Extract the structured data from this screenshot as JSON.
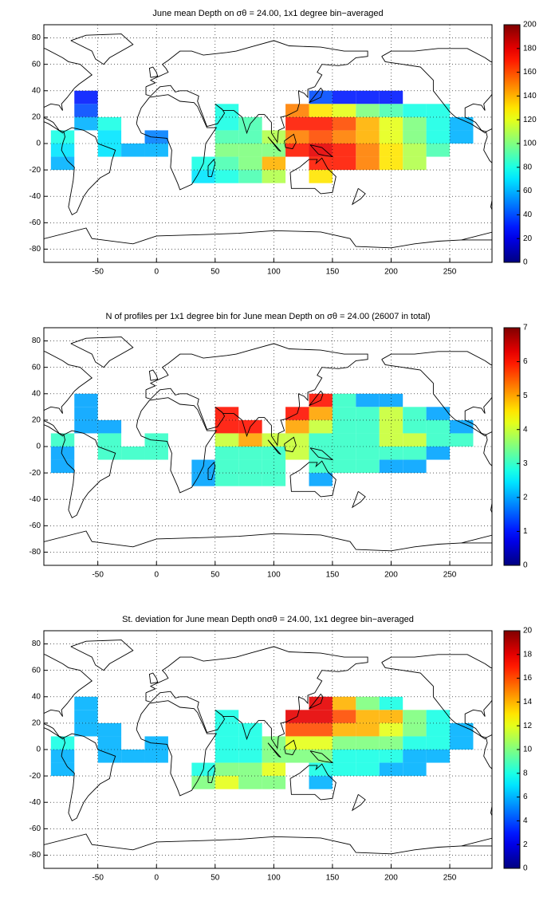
{
  "chart_data": [
    {
      "type": "heatmap",
      "title": "June mean Depth on σθ = 24.00, 1x1 degree bin−averaged",
      "xlim": [
        -96,
        286
      ],
      "ylim": [
        -90,
        90
      ],
      "xticks": [
        -50,
        0,
        50,
        100,
        150,
        200,
        250
      ],
      "yticks": [
        -80,
        -60,
        -40,
        -20,
        0,
        20,
        40,
        60,
        80
      ],
      "grid": true,
      "colormap": "jet",
      "colorbar_lim": [
        0,
        200
      ],
      "colorbar_ticks": [
        0,
        20,
        40,
        60,
        80,
        100,
        120,
        140,
        160,
        180,
        200
      ],
      "x": [
        -80,
        -60,
        -40,
        -20,
        0,
        20,
        40,
        60,
        80,
        100,
        120,
        140,
        160,
        180,
        200,
        220,
        240,
        260,
        280
      ],
      "y": [
        35,
        25,
        15,
        5,
        -5,
        -15,
        -25
      ],
      "values": [
        [
          null,
          30,
          null,
          null,
          null,
          null,
          null,
          null,
          null,
          null,
          null,
          40,
          30,
          30,
          30,
          null,
          null,
          null,
          null
        ],
        [
          null,
          40,
          null,
          null,
          null,
          null,
          null,
          80,
          null,
          null,
          150,
          130,
          120,
          100,
          90,
          80,
          80,
          null,
          null
        ],
        [
          null,
          60,
          80,
          null,
          null,
          null,
          null,
          80,
          90,
          null,
          170,
          170,
          160,
          140,
          120,
          100,
          80,
          60,
          null
        ],
        [
          80,
          null,
          70,
          null,
          50,
          null,
          null,
          90,
          90,
          110,
          150,
          160,
          150,
          140,
          120,
          100,
          80,
          60,
          null
        ],
        [
          70,
          null,
          70,
          60,
          60,
          null,
          null,
          100,
          100,
          100,
          170,
          180,
          170,
          150,
          130,
          110,
          90,
          null,
          null
        ],
        [
          60,
          null,
          null,
          null,
          null,
          null,
          80,
          90,
          100,
          140,
          null,
          170,
          170,
          150,
          130,
          110,
          null,
          null,
          null
        ],
        [
          null,
          null,
          null,
          null,
          null,
          null,
          70,
          80,
          90,
          110,
          null,
          130,
          null,
          null,
          null,
          null,
          null,
          null,
          null
        ]
      ]
    },
    {
      "type": "heatmap",
      "title": "N of profiles per 1x1 degree bin for June mean Depth on σθ = 24.00 (26007 in total)",
      "xlim": [
        -96,
        286
      ],
      "ylim": [
        -90,
        90
      ],
      "xticks": [
        -50,
        0,
        50,
        100,
        150,
        200,
        250
      ],
      "yticks": [
        -80,
        -60,
        -40,
        -20,
        0,
        20,
        40,
        60,
        80
      ],
      "grid": true,
      "colormap": "jet",
      "colorbar_lim": [
        0,
        7
      ],
      "colorbar_ticks": [
        0,
        1,
        2,
        3,
        4,
        5,
        6,
        7
      ],
      "x": [
        -80,
        -60,
        -40,
        -20,
        0,
        20,
        40,
        60,
        80,
        100,
        120,
        140,
        160,
        180,
        200,
        220,
        240,
        260,
        280
      ],
      "y": [
        35,
        25,
        15,
        5,
        -5,
        -15,
        -25
      ],
      "values": [
        [
          null,
          2,
          null,
          null,
          null,
          null,
          null,
          null,
          null,
          null,
          null,
          6,
          3,
          2,
          2,
          null,
          null,
          null,
          null
        ],
        [
          null,
          2,
          null,
          null,
          null,
          null,
          null,
          6,
          null,
          null,
          6,
          5,
          3,
          3,
          4,
          3,
          2,
          null,
          null
        ],
        [
          null,
          2,
          2,
          null,
          null,
          null,
          null,
          6,
          6,
          null,
          5,
          4,
          3,
          3,
          4,
          3,
          3,
          2,
          null
        ],
        [
          3,
          null,
          3,
          null,
          3,
          null,
          null,
          4,
          5,
          4,
          4,
          3,
          3,
          3,
          4,
          4,
          3,
          3,
          null
        ],
        [
          2,
          null,
          3,
          3,
          3,
          null,
          null,
          3,
          3,
          3,
          4,
          3,
          3,
          3,
          3,
          3,
          2,
          null,
          null
        ],
        [
          2,
          null,
          null,
          null,
          null,
          null,
          2,
          3,
          3,
          3,
          null,
          3,
          3,
          3,
          2,
          2,
          null,
          null,
          null
        ],
        [
          null,
          null,
          null,
          null,
          null,
          null,
          2,
          3,
          3,
          3,
          null,
          2,
          null,
          null,
          null,
          null,
          null,
          null,
          null
        ]
      ]
    },
    {
      "type": "heatmap",
      "title": "St. deviation for June mean Depth onσθ = 24.00, 1x1 degree bin−averaged",
      "xlim": [
        -96,
        286
      ],
      "ylim": [
        -90,
        90
      ],
      "xticks": [
        -50,
        0,
        50,
        100,
        150,
        200,
        250
      ],
      "yticks": [
        -80,
        -60,
        -40,
        -20,
        0,
        20,
        40,
        60,
        80
      ],
      "grid": true,
      "colormap": "jet",
      "colorbar_lim": [
        0,
        20
      ],
      "colorbar_ticks": [
        0,
        2,
        4,
        6,
        8,
        10,
        12,
        14,
        16,
        18,
        20
      ],
      "x": [
        -80,
        -60,
        -40,
        -20,
        0,
        20,
        40,
        60,
        80,
        100,
        120,
        140,
        160,
        180,
        200,
        220,
        240,
        260,
        280
      ],
      "y": [
        35,
        25,
        15,
        5,
        -5,
        -15,
        -25
      ],
      "values": [
        [
          null,
          6,
          null,
          null,
          null,
          null,
          null,
          null,
          null,
          null,
          null,
          18,
          14,
          10,
          8,
          null,
          null,
          null,
          null
        ],
        [
          null,
          6,
          null,
          null,
          null,
          null,
          null,
          8,
          null,
          null,
          18,
          18,
          16,
          14,
          14,
          10,
          8,
          null,
          null
        ],
        [
          null,
          6,
          6,
          null,
          null,
          null,
          null,
          8,
          8,
          null,
          16,
          16,
          14,
          14,
          12,
          10,
          8,
          6,
          null
        ],
        [
          8,
          null,
          6,
          null,
          6,
          null,
          null,
          8,
          8,
          10,
          12,
          12,
          10,
          10,
          10,
          8,
          8,
          6,
          null
        ],
        [
          6,
          null,
          6,
          6,
          6,
          null,
          null,
          8,
          8,
          10,
          10,
          10,
          8,
          8,
          8,
          6,
          6,
          null,
          null
        ],
        [
          6,
          null,
          null,
          null,
          null,
          null,
          8,
          10,
          10,
          12,
          null,
          8,
          8,
          8,
          6,
          6,
          null,
          null,
          null
        ],
        [
          null,
          null,
          null,
          null,
          null,
          null,
          10,
          12,
          10,
          10,
          null,
          6,
          null,
          null,
          null,
          null,
          null,
          null,
          null
        ]
      ]
    }
  ]
}
